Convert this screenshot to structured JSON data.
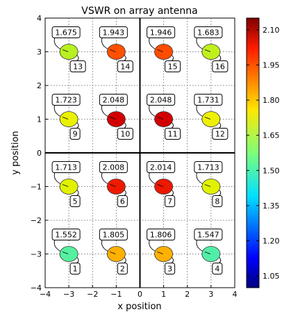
{
  "chart_data": {
    "type": "scatter",
    "title": "VSWR on array antenna",
    "xlabel": "x position",
    "ylabel": "y position",
    "xlim": [
      -4,
      4
    ],
    "ylim": [
      -4,
      4
    ],
    "xticks": [
      "−4",
      "−3",
      "−2",
      "−1",
      "0",
      "1",
      "2",
      "3",
      "4"
    ],
    "yticks": [
      "−4",
      "−3",
      "−2",
      "−1",
      "0",
      "1",
      "2",
      "3",
      "4"
    ],
    "grid": true,
    "colormap": "jet",
    "colorbar": {
      "min": 1.0,
      "max": 2.15,
      "ticks": [
        "1.05",
        "1.20",
        "1.35",
        "1.50",
        "1.65",
        "1.80",
        "1.95",
        "2.10"
      ]
    },
    "points": [
      {
        "id": "1",
        "x": -3,
        "y": -3,
        "vswr": "1.552",
        "color": "#55f0a0"
      },
      {
        "id": "2",
        "x": -1,
        "y": -3,
        "vswr": "1.805",
        "color": "#ffb000"
      },
      {
        "id": "3",
        "x": 1,
        "y": -3,
        "vswr": "1.806",
        "color": "#ffb000"
      },
      {
        "id": "4",
        "x": 3,
        "y": -3,
        "vswr": "1.547",
        "color": "#52eea8"
      },
      {
        "id": "5",
        "x": -3,
        "y": -1,
        "vswr": "1.713",
        "color": "#e0f200"
      },
      {
        "id": "6",
        "x": -1,
        "y": -1,
        "vswr": "2.008",
        "color": "#ee1a00"
      },
      {
        "id": "7",
        "x": 1,
        "y": -1,
        "vswr": "2.014",
        "color": "#ec1800"
      },
      {
        "id": "8",
        "x": 3,
        "y": -1,
        "vswr": "1.713",
        "color": "#e0f200"
      },
      {
        "id": "9",
        "x": -3,
        "y": 1,
        "vswr": "1.723",
        "color": "#eaf200"
      },
      {
        "id": "10",
        "x": -1,
        "y": 1,
        "vswr": "2.048",
        "color": "#d20000"
      },
      {
        "id": "11",
        "x": 1,
        "y": 1,
        "vswr": "2.048",
        "color": "#d20000"
      },
      {
        "id": "12",
        "x": 3,
        "y": 1,
        "vswr": "1.731",
        "color": "#eef000"
      },
      {
        "id": "13",
        "x": -3,
        "y": 3,
        "vswr": "1.675",
        "color": "#b8f020"
      },
      {
        "id": "14",
        "x": -1,
        "y": 3,
        "vswr": "1.943",
        "color": "#ff5000"
      },
      {
        "id": "15",
        "x": 1,
        "y": 3,
        "vswr": "1.946",
        "color": "#ff4c00"
      },
      {
        "id": "16",
        "x": 3,
        "y": 3,
        "vswr": "1.683",
        "color": "#c0f01c"
      }
    ]
  }
}
